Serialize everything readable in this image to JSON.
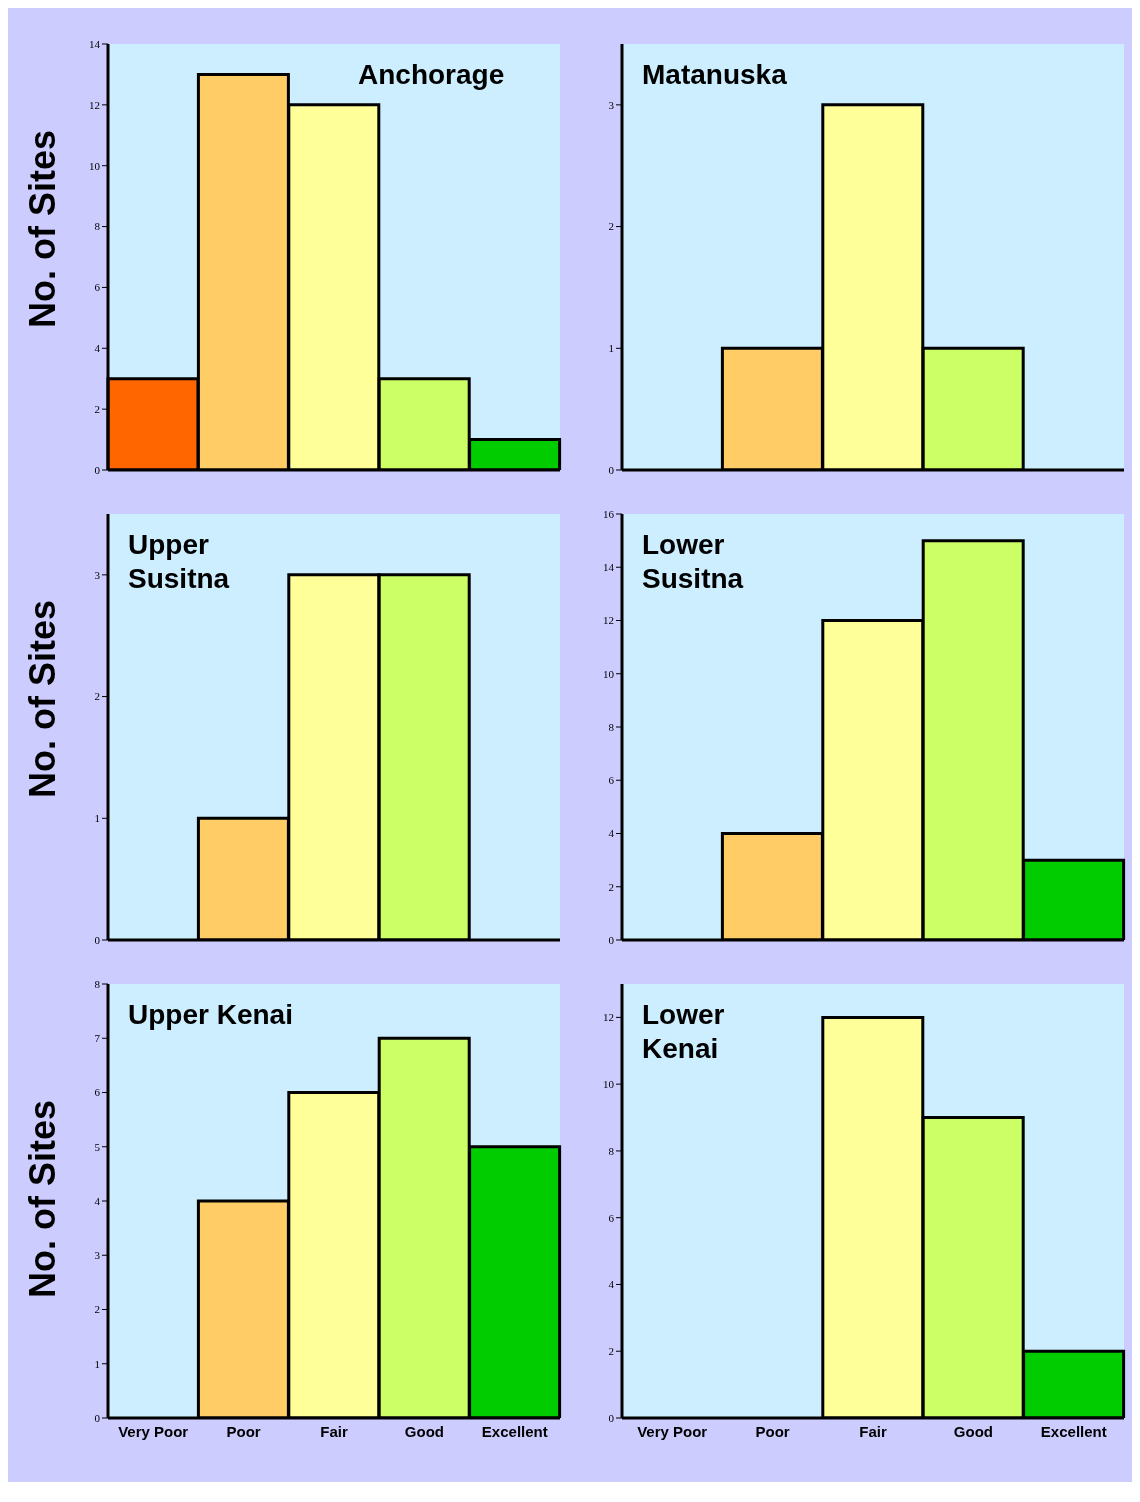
{
  "chart_data": [
    {
      "type": "bar",
      "title": "Anchorage",
      "ylabel": "No. of Sites",
      "categories": [
        null,
        null,
        null,
        null,
        null
      ],
      "values": [
        3,
        13,
        12,
        3,
        1
      ],
      "colors": [
        "#ff6600",
        "#ffcc66",
        "#ffff99",
        "#ccff66",
        "#00cc00"
      ],
      "ylim": [
        0,
        14
      ],
      "yticks": [
        0,
        2,
        4,
        6,
        8,
        10,
        12,
        14
      ],
      "tick_labels": "y",
      "grid": false,
      "legend": false
    },
    {
      "type": "bar",
      "title": "Matanuska",
      "categories": [
        null,
        null,
        null,
        null,
        null
      ],
      "values": [
        0,
        1,
        3,
        1,
        0
      ],
      "colors": [
        "#ff6600",
        "#ffcc66",
        "#ffff99",
        "#ccff66",
        "#00cc00"
      ],
      "ylim": [
        0,
        3.5
      ],
      "yticks": [
        0,
        1,
        2,
        3
      ],
      "tick_labels": "y",
      "grid": false,
      "legend": false
    },
    {
      "type": "bar",
      "title": "Upper\nSusitna",
      "ylabel": "No. of Sites",
      "categories": [
        null,
        null,
        null,
        null,
        null
      ],
      "values": [
        0,
        1,
        3,
        3,
        0
      ],
      "colors": [
        "#ff6600",
        "#ffcc66",
        "#ffff99",
        "#ccff66",
        "#00cc00"
      ],
      "ylim": [
        0,
        3.5
      ],
      "yticks": [
        0,
        1,
        2,
        3
      ],
      "tick_labels": "y",
      "grid": false,
      "legend": false
    },
    {
      "type": "bar",
      "title": "Lower\nSusitna",
      "categories": [
        null,
        null,
        null,
        null,
        null
      ],
      "values": [
        0,
        4,
        12,
        15,
        3
      ],
      "colors": [
        "#ff6600",
        "#ffcc66",
        "#ffff99",
        "#ccff66",
        "#00cc00"
      ],
      "ylim": [
        0,
        16
      ],
      "yticks": [
        0,
        2,
        4,
        6,
        8,
        10,
        12,
        14,
        16
      ],
      "tick_labels": "y",
      "grid": false,
      "legend": false
    },
    {
      "type": "bar",
      "title": "Upper Kenai",
      "ylabel": "No. of Sites",
      "categories": [
        "Very Poor",
        "Poor",
        "Fair",
        "Good",
        "Excellent"
      ],
      "values": [
        0,
        4,
        6,
        7,
        5
      ],
      "colors": [
        "#ff6600",
        "#ffcc66",
        "#ffff99",
        "#ccff66",
        "#00cc00"
      ],
      "ylim": [
        0,
        8
      ],
      "yticks": [
        0,
        1,
        2,
        3,
        4,
        5,
        6,
        7,
        8
      ],
      "grid": false,
      "legend": false
    },
    {
      "type": "bar",
      "title": "Lower\nKenai",
      "categories": [
        "Very Poor",
        "Poor",
        "Fair",
        "Good",
        "Excellent"
      ],
      "values": [
        0,
        0,
        12,
        9,
        2
      ],
      "colors": [
        "#ff6600",
        "#ffcc66",
        "#ffff99",
        "#ccff66",
        "#00cc00"
      ],
      "ylim": [
        0,
        13
      ],
      "yticks": [
        0,
        2,
        4,
        6,
        8,
        10,
        12
      ],
      "grid": false,
      "legend": false
    }
  ]
}
